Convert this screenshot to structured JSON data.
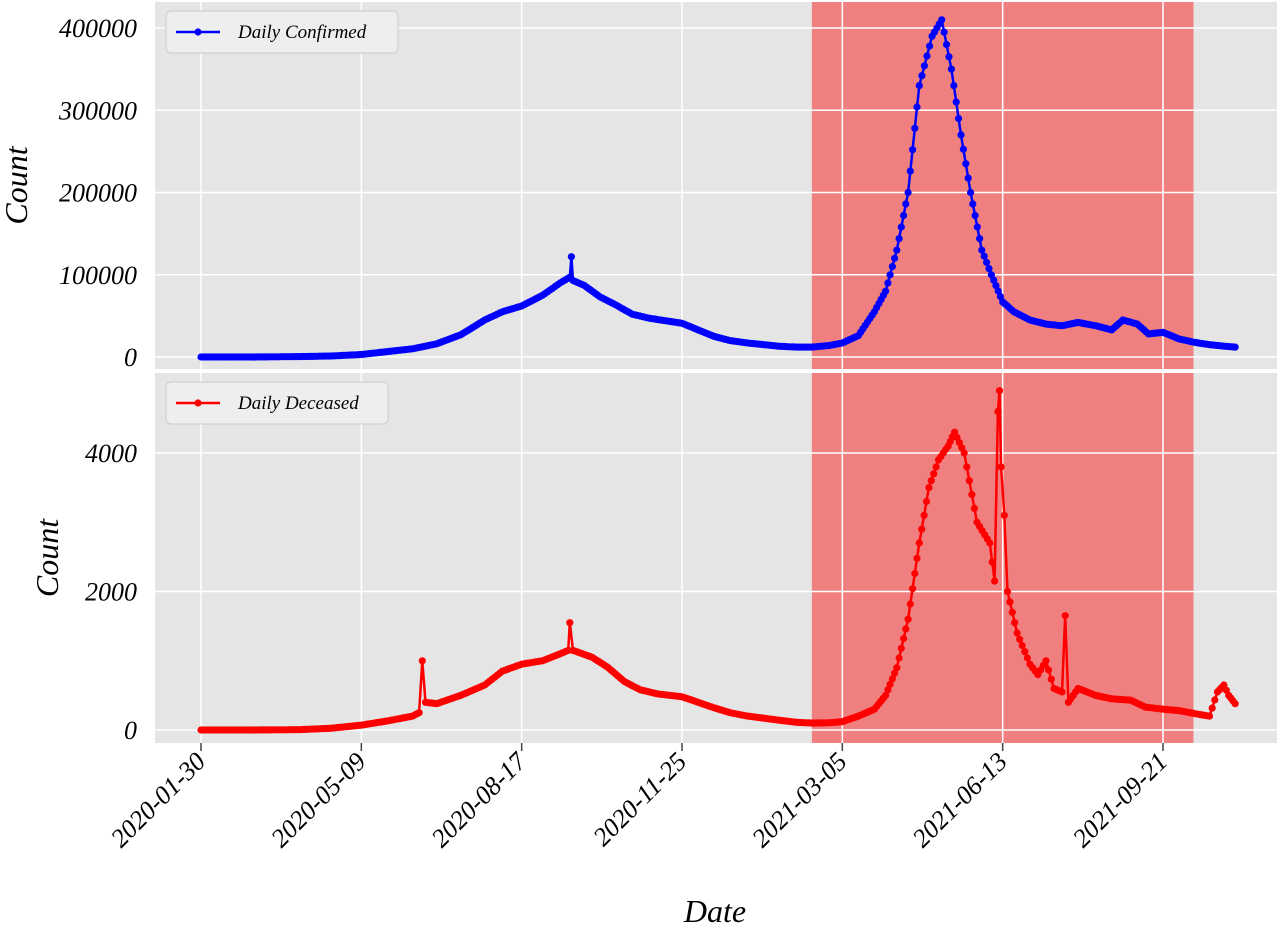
{
  "chart_data": [
    {
      "type": "line",
      "panel": "top",
      "xlabel": "",
      "ylabel": "Count",
      "ylim": [
        0,
        415000
      ],
      "yticks": [
        0,
        100000,
        200000,
        300000,
        400000
      ],
      "ytick_labels": [
        "0",
        "100000",
        "200000",
        "300000",
        "400000"
      ],
      "grid": true,
      "legend_position": "top-left",
      "highlight_range": [
        "2021-02-14",
        "2021-10-10"
      ],
      "series": [
        {
          "name": "Daily Confirmed",
          "color": "#0000ff",
          "points": [
            [
              "2020-01-30",
              0
            ],
            [
              "2020-03-01",
              0
            ],
            [
              "2020-04-01",
              500
            ],
            [
              "2020-04-20",
              1200
            ],
            [
              "2020-05-09",
              3000
            ],
            [
              "2020-05-25",
              6500
            ],
            [
              "2020-06-10",
              10000
            ],
            [
              "2020-06-25",
              16000
            ],
            [
              "2020-07-10",
              27000
            ],
            [
              "2020-07-25",
              45000
            ],
            [
              "2020-08-05",
              55000
            ],
            [
              "2020-08-17",
              62000
            ],
            [
              "2020-08-30",
              75000
            ],
            [
              "2020-09-10",
              90000
            ],
            [
              "2020-09-16",
              97000
            ],
            [
              "2020-09-17",
              122000
            ],
            [
              "2020-09-18",
              93000
            ],
            [
              "2020-09-25",
              87000
            ],
            [
              "2020-10-05",
              73000
            ],
            [
              "2020-10-15",
              63000
            ],
            [
              "2020-10-25",
              52000
            ],
            [
              "2020-11-05",
              47000
            ],
            [
              "2020-11-15",
              44000
            ],
            [
              "2020-11-25",
              41000
            ],
            [
              "2020-12-05",
              33000
            ],
            [
              "2020-12-15",
              25000
            ],
            [
              "2020-12-25",
              20000
            ],
            [
              "2021-01-05",
              17000
            ],
            [
              "2021-01-15",
              15000
            ],
            [
              "2021-01-25",
              13000
            ],
            [
              "2021-02-05",
              12000
            ],
            [
              "2021-02-14",
              12000
            ],
            [
              "2021-02-25",
              14000
            ],
            [
              "2021-03-05",
              17000
            ],
            [
              "2021-03-15",
              26000
            ],
            [
              "2021-03-25",
              55000
            ],
            [
              "2021-04-01",
              80000
            ],
            [
              "2021-04-08",
              130000
            ],
            [
              "2021-04-15",
              200000
            ],
            [
              "2021-04-22",
              330000
            ],
            [
              "2021-04-30",
              390000
            ],
            [
              "2021-05-06",
              410000
            ],
            [
              "2021-05-12",
              350000
            ],
            [
              "2021-05-18",
              270000
            ],
            [
              "2021-05-24",
              200000
            ],
            [
              "2021-05-31",
              130000
            ],
            [
              "2021-06-06",
              100000
            ],
            [
              "2021-06-13",
              67000
            ],
            [
              "2021-06-20",
              55000
            ],
            [
              "2021-06-30",
              45000
            ],
            [
              "2021-07-10",
              40000
            ],
            [
              "2021-07-20",
              38000
            ],
            [
              "2021-07-30",
              42000
            ],
            [
              "2021-08-10",
              38000
            ],
            [
              "2021-08-20",
              33000
            ],
            [
              "2021-08-27",
              45000
            ],
            [
              "2021-09-05",
              40000
            ],
            [
              "2021-09-12",
              28000
            ],
            [
              "2021-09-21",
              30000
            ],
            [
              "2021-10-01",
              22000
            ],
            [
              "2021-10-10",
              18000
            ],
            [
              "2021-10-20",
              15000
            ],
            [
              "2021-10-30",
              13000
            ],
            [
              "2021-11-05",
              12000
            ]
          ]
        }
      ]
    },
    {
      "type": "line",
      "panel": "bottom",
      "xlabel": "Date",
      "ylabel": "Count",
      "ylim": [
        -150,
        5000
      ],
      "yticks": [
        0,
        2000,
        4000
      ],
      "ytick_labels": [
        "0",
        "2000",
        "4000"
      ],
      "x_ticks": [
        "2020-01-30",
        "2020-05-09",
        "2020-08-17",
        "2020-11-25",
        "2021-03-05",
        "2021-06-13",
        "2021-09-21"
      ],
      "grid": true,
      "legend_position": "top-left",
      "highlight_range": [
        "2021-02-14",
        "2021-10-10"
      ],
      "series": [
        {
          "name": "Daily Deceased",
          "color": "#ff0000",
          "points": [
            [
              "2020-01-30",
              0
            ],
            [
              "2020-03-01",
              0
            ],
            [
              "2020-04-01",
              5
            ],
            [
              "2020-04-20",
              25
            ],
            [
              "2020-05-09",
              70
            ],
            [
              "2020-05-25",
              130
            ],
            [
              "2020-06-10",
              200
            ],
            [
              "2020-06-14",
              250
            ],
            [
              "2020-06-16",
              1000
            ],
            [
              "2020-06-18",
              400
            ],
            [
              "2020-06-25",
              380
            ],
            [
              "2020-07-10",
              500
            ],
            [
              "2020-07-25",
              650
            ],
            [
              "2020-08-05",
              850
            ],
            [
              "2020-08-17",
              950
            ],
            [
              "2020-08-30",
              1000
            ],
            [
              "2020-09-10",
              1100
            ],
            [
              "2020-09-15",
              1150
            ],
            [
              "2020-09-16",
              1550
            ],
            [
              "2020-09-18",
              1150
            ],
            [
              "2020-09-30",
              1050
            ],
            [
              "2020-10-10",
              900
            ],
            [
              "2020-10-20",
              700
            ],
            [
              "2020-10-30",
              580
            ],
            [
              "2020-11-10",
              520
            ],
            [
              "2020-11-25",
              480
            ],
            [
              "2020-12-05",
              400
            ],
            [
              "2020-12-15",
              320
            ],
            [
              "2020-12-25",
              250
            ],
            [
              "2021-01-05",
              200
            ],
            [
              "2021-01-15",
              170
            ],
            [
              "2021-01-25",
              140
            ],
            [
              "2021-02-05",
              110
            ],
            [
              "2021-02-15",
              100
            ],
            [
              "2021-02-25",
              105
            ],
            [
              "2021-03-05",
              120
            ],
            [
              "2021-03-15",
              200
            ],
            [
              "2021-03-25",
              300
            ],
            [
              "2021-04-01",
              500
            ],
            [
              "2021-04-08",
              900
            ],
            [
              "2021-04-15",
              1600
            ],
            [
              "2021-04-22",
              2700
            ],
            [
              "2021-04-28",
              3500
            ],
            [
              "2021-05-04",
              3900
            ],
            [
              "2021-05-10",
              4100
            ],
            [
              "2021-05-14",
              4300
            ],
            [
              "2021-05-20",
              4000
            ],
            [
              "2021-05-28",
              3000
            ],
            [
              "2021-06-05",
              2700
            ],
            [
              "2021-06-08",
              2150
            ],
            [
              "2021-06-10",
              4600
            ],
            [
              "2021-06-11",
              4900
            ],
            [
              "2021-06-12",
              3800
            ],
            [
              "2021-06-14",
              3100
            ],
            [
              "2021-06-16",
              2000
            ],
            [
              "2021-06-22",
              1400
            ],
            [
              "2021-06-30",
              950
            ],
            [
              "2021-07-05",
              800
            ],
            [
              "2021-07-10",
              1000
            ],
            [
              "2021-07-15",
              600
            ],
            [
              "2021-07-20",
              550
            ],
            [
              "2021-07-22",
              1650
            ],
            [
              "2021-07-24",
              400
            ],
            [
              "2021-07-30",
              600
            ],
            [
              "2021-08-10",
              500
            ],
            [
              "2021-08-20",
              450
            ],
            [
              "2021-09-01",
              430
            ],
            [
              "2021-09-10",
              330
            ],
            [
              "2021-09-21",
              300
            ],
            [
              "2021-10-01",
              280
            ],
            [
              "2021-10-10",
              240
            ],
            [
              "2021-10-20",
              200
            ],
            [
              "2021-10-25",
              550
            ],
            [
              "2021-10-29",
              650
            ],
            [
              "2021-11-01",
              500
            ],
            [
              "2021-11-05",
              380
            ]
          ]
        }
      ]
    }
  ],
  "colors": {
    "plot_background": "#e5e5e5",
    "highlight": "#f08080",
    "grid": "#ffffff"
  }
}
